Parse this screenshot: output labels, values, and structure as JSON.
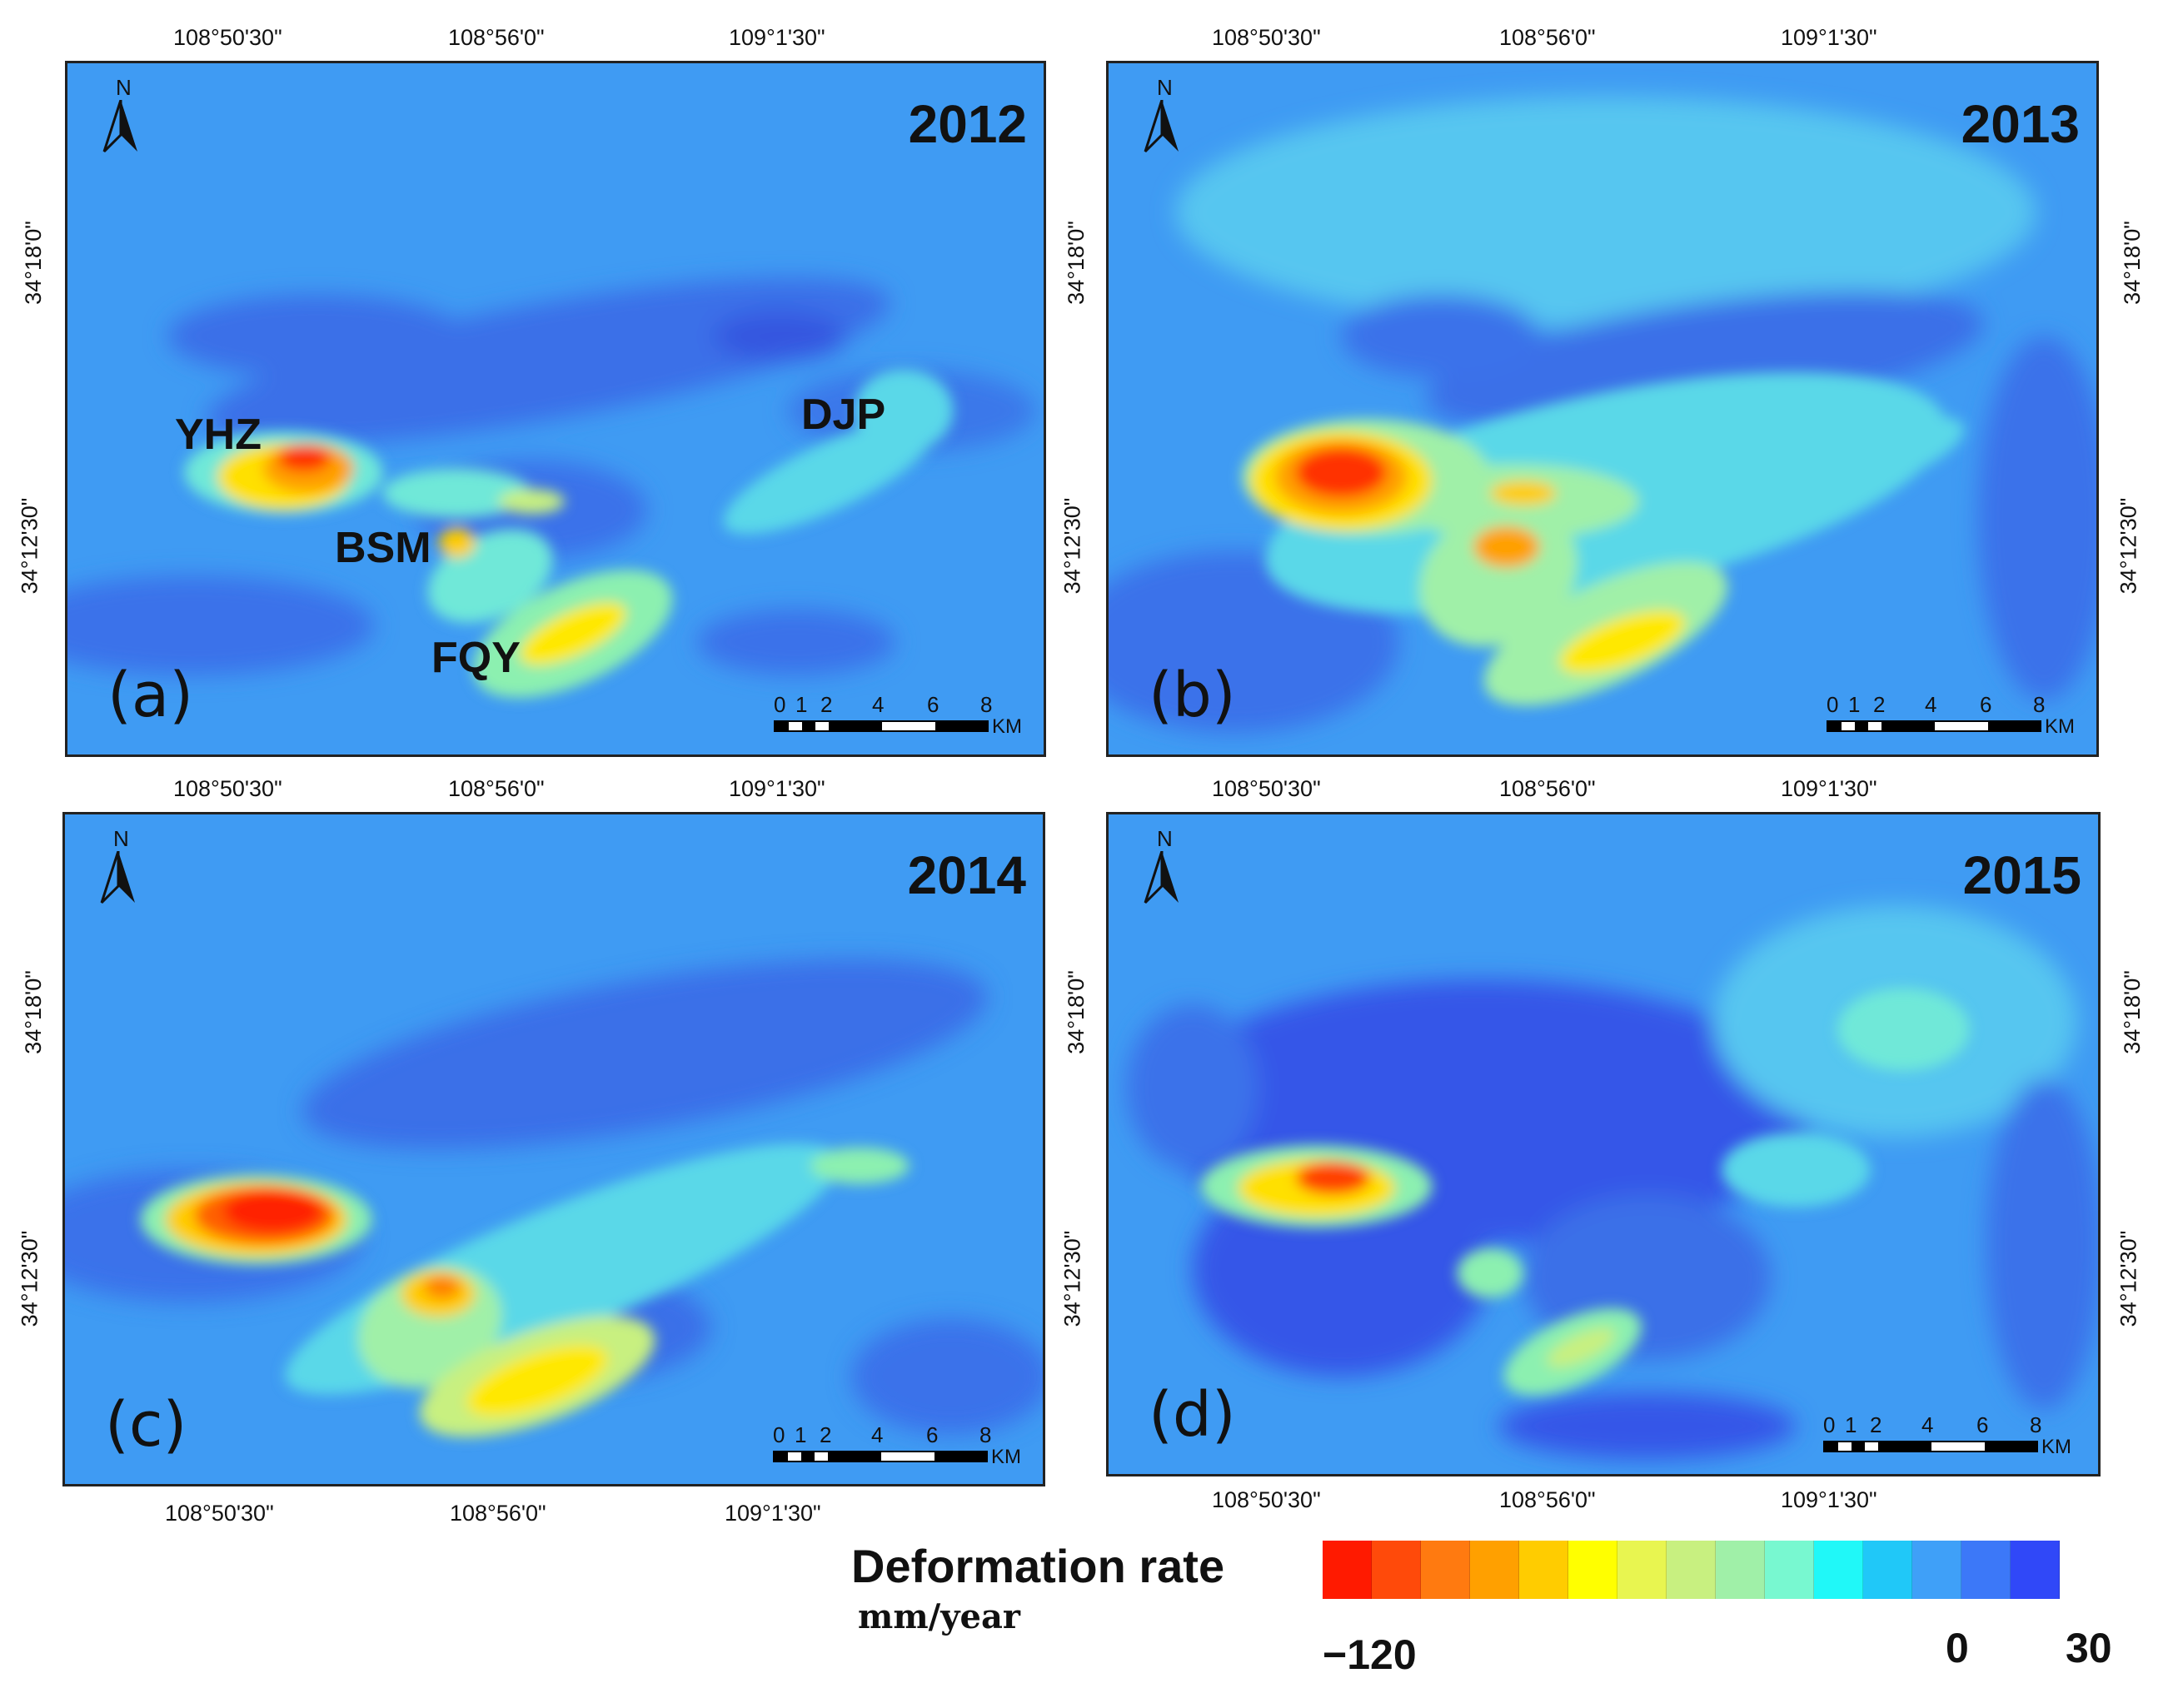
{
  "panels": [
    {
      "id": "a",
      "label": "(a)",
      "year": "2012"
    },
    {
      "id": "b",
      "label": "(b)",
      "year": "2013"
    },
    {
      "id": "c",
      "label": "(c)",
      "year": "2014"
    },
    {
      "id": "d",
      "label": "(d)",
      "year": "2015"
    }
  ],
  "longitude_ticks": [
    "108°50'30\"",
    "108°56'0\"",
    "109°1'30\""
  ],
  "latitude_ticks": [
    "34°18'0\"",
    "34°12'30\""
  ],
  "north_label": "N",
  "scale_bar": {
    "ticks": [
      "0",
      "1",
      "2",
      "4",
      "6",
      "8"
    ],
    "unit": "KM"
  },
  "sites": {
    "yhz": "YHZ",
    "bsm": "BSM",
    "fqy": "FQY",
    "djp": "DJP"
  },
  "legend": {
    "title": "Deformation rate",
    "unit": "mm/year",
    "min_label": "−120",
    "zero_label": "0",
    "max_label": "30",
    "colors": [
      "#ff1a00",
      "#ff4a0a",
      "#ff7a10",
      "#ffa000",
      "#ffcc00",
      "#ffff00",
      "#e8f550",
      "#c8f080",
      "#a0f0a8",
      "#78f8d0",
      "#20f8f8",
      "#20c8f8",
      "#3fa0f8",
      "#3c78f8",
      "#3048f8"
    ]
  },
  "colors": {
    "background": "#3f9bf3",
    "stable": "#3f9bf3",
    "uplift": "#3556e8",
    "subsidence_max": "#ff1a00"
  }
}
